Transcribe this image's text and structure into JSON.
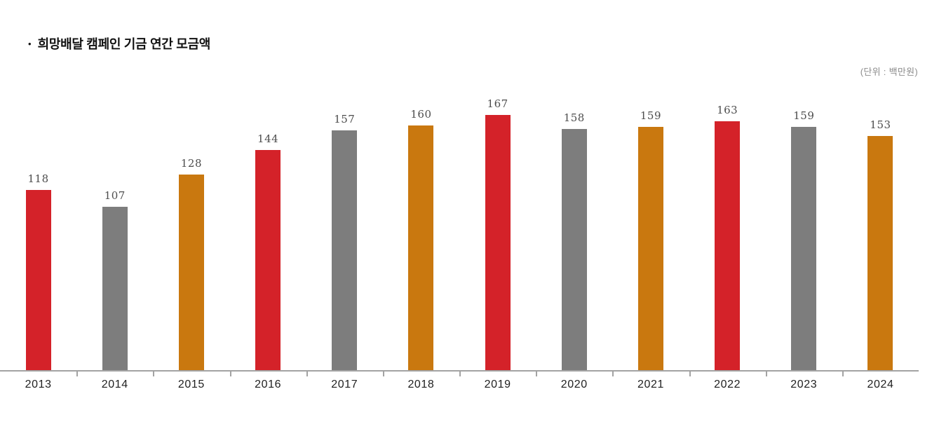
{
  "title": {
    "bullet": "•",
    "text": "희망배달 캠페인 기금 연간 모금액"
  },
  "unit_label": "(단위 : 백만원)",
  "chart_data": {
    "type": "bar",
    "title": "희망배달 캠페인 기금 연간 모금액",
    "unit": "백만원",
    "categories": [
      "2013",
      "2014",
      "2015",
      "2016",
      "2017",
      "2018",
      "2019",
      "2020",
      "2021",
      "2022",
      "2023",
      "2024"
    ],
    "values": [
      118,
      107,
      128,
      144,
      157,
      160,
      167,
      158,
      159,
      163,
      159,
      153
    ],
    "bar_colors": [
      "#d42229",
      "#7d7d7d",
      "#c9780f",
      "#d42229",
      "#7d7d7d",
      "#c9780f",
      "#d42229",
      "#7d7d7d",
      "#c9780f",
      "#d42229",
      "#7d7d7d",
      "#c9780f"
    ],
    "color_cycle": [
      "#d42229",
      "#7d7d7d",
      "#c9780f"
    ],
    "value_labels_shown": true,
    "xlabel": "",
    "ylabel": "",
    "ylim": [
      0,
      180
    ],
    "grid": false,
    "legend": "none",
    "axis_color": "#a3a3a3"
  },
  "colors": {
    "red": "#d42229",
    "gray": "#7d7d7d",
    "orange": "#c9780f",
    "axis": "#a3a3a3",
    "value_label": "#4d4d4d",
    "category_label": "#1f1f1f",
    "unit_label": "#8c8c8c",
    "title": "#111111",
    "background": "#ffffff"
  }
}
